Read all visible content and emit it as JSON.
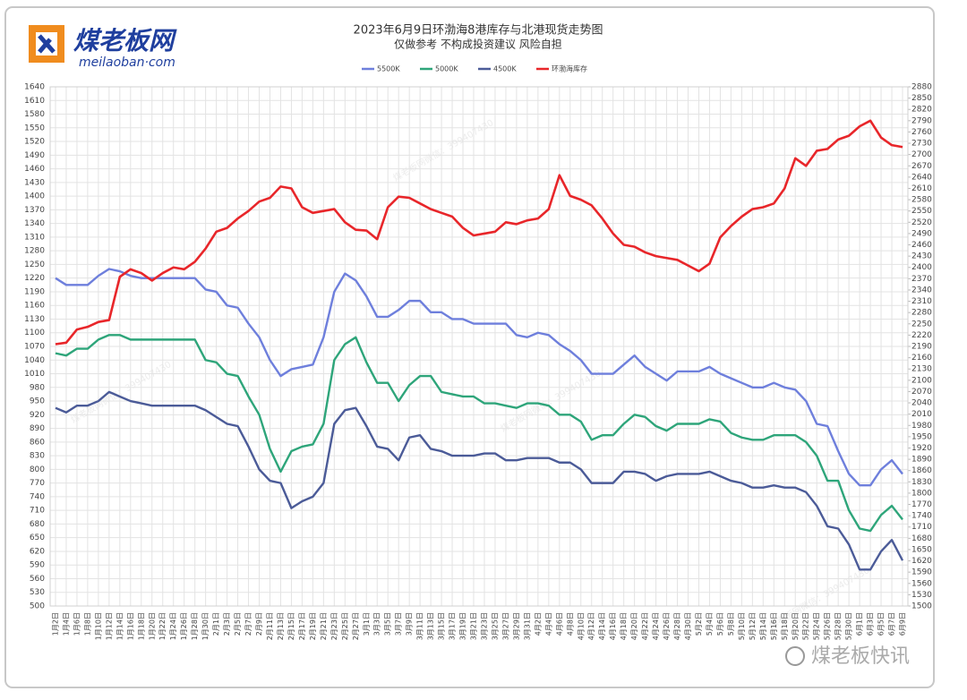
{
  "logo": {
    "name": "煤老板网",
    "site": "meilaoban·com"
  },
  "watermark": "煤老板网微信：399407430",
  "footer_brand": "煤老板快讯",
  "chart_data": {
    "type": "line",
    "title": "2023年6月9日环渤海8港库存与北港现货走势图",
    "subtitle": "仅做参考 不构成投资建议 风险自担",
    "categories": [
      "1月2日",
      "1月4日",
      "1月6日",
      "1月8日",
      "1月10日",
      "1月12日",
      "1月14日",
      "1月16日",
      "1月18日",
      "1月20日",
      "1月22日",
      "1月24日",
      "1月26日",
      "1月28日",
      "1月30日",
      "2月1日",
      "2月3日",
      "2月5日",
      "2月7日",
      "2月9日",
      "2月11日",
      "2月13日",
      "2月15日",
      "2月17日",
      "2月19日",
      "2月21日",
      "2月23日",
      "2月25日",
      "2月27日",
      "3月1日",
      "3月3日",
      "3月5日",
      "3月7日",
      "3月9日",
      "3月11日",
      "3月13日",
      "3月15日",
      "3月17日",
      "3月19日",
      "3月21日",
      "3月23日",
      "3月25日",
      "3月27日",
      "3月29日",
      "3月31日",
      "4月2日",
      "4月4日",
      "4月6日",
      "4月8日",
      "4月10日",
      "4月12日",
      "4月14日",
      "4月16日",
      "4月18日",
      "4月20日",
      "4月22日",
      "4月24日",
      "4月26日",
      "4月28日",
      "4月30日",
      "5月2日",
      "5月4日",
      "5月6日",
      "5月8日",
      "5月10日",
      "5月12日",
      "5月14日",
      "5月16日",
      "5月18日",
      "5月20日",
      "5月22日",
      "5月24日",
      "5月26日",
      "5月28日",
      "5月30日",
      "6月1日",
      "6月3日",
      "6月5日",
      "6月7日",
      "6月9日"
    ],
    "series": [
      {
        "name": "5500K",
        "color": "#6e7fdc",
        "values": [
          1220,
          1205,
          1205,
          1205,
          1225,
          1240,
          1235,
          1225,
          1220,
          1220,
          1220,
          1220,
          1220,
          1220,
          1195,
          1190,
          1160,
          1155,
          1120,
          1090,
          1040,
          1005,
          1020,
          1025,
          1030,
          1090,
          1190,
          1230,
          1215,
          1180,
          1135,
          1135,
          1150,
          1170,
          1170,
          1145,
          1145,
          1130,
          1130,
          1120,
          1120,
          1120,
          1120,
          1095,
          1090,
          1100,
          1095,
          1075,
          1060,
          1040,
          1010,
          1010,
          1010,
          1030,
          1050,
          1025,
          1010,
          995,
          1015,
          1015,
          1015,
          1025,
          1010,
          1000,
          990,
          980,
          980,
          990,
          980,
          975,
          950,
          900,
          895,
          840,
          790,
          765,
          765,
          800,
          820,
          790
        ]
      },
      {
        "name": "5000K",
        "color": "#2ea57a",
        "values": [
          1055,
          1050,
          1065,
          1065,
          1085,
          1095,
          1095,
          1085,
          1085,
          1085,
          1085,
          1085,
          1085,
          1085,
          1040,
          1035,
          1010,
          1005,
          960,
          920,
          845,
          795,
          840,
          850,
          855,
          900,
          1040,
          1075,
          1090,
          1035,
          990,
          990,
          950,
          985,
          1005,
          1005,
          970,
          965,
          960,
          960,
          945,
          945,
          940,
          935,
          945,
          945,
          940,
          920,
          920,
          905,
          865,
          875,
          875,
          900,
          920,
          915,
          895,
          885,
          900,
          900,
          900,
          910,
          905,
          880,
          870,
          865,
          865,
          875,
          875,
          875,
          860,
          830,
          775,
          775,
          710,
          670,
          665,
          700,
          720,
          690
        ]
      },
      {
        "name": "4500K",
        "color": "#4b5b98",
        "values": [
          935,
          925,
          940,
          940,
          950,
          970,
          960,
          950,
          945,
          940,
          940,
          940,
          940,
          940,
          930,
          915,
          900,
          895,
          850,
          800,
          775,
          770,
          715,
          730,
          740,
          770,
          900,
          930,
          935,
          895,
          850,
          845,
          820,
          870,
          875,
          845,
          840,
          830,
          830,
          830,
          835,
          835,
          820,
          820,
          825,
          825,
          825,
          815,
          815,
          800,
          770,
          770,
          770,
          795,
          795,
          790,
          775,
          785,
          790,
          790,
          790,
          795,
          785,
          775,
          770,
          760,
          760,
          765,
          760,
          760,
          750,
          720,
          675,
          670,
          635,
          580,
          580,
          620,
          645,
          600
        ]
      },
      {
        "name": "环渤海库存",
        "color": "#e8262a",
        "axis": "y2",
        "values": [
          2196,
          2200,
          2235,
          2242,
          2255,
          2260,
          2375,
          2395,
          2385,
          2365,
          2385,
          2400,
          2395,
          2415,
          2450,
          2495,
          2505,
          2530,
          2550,
          2575,
          2585,
          2615,
          2610,
          2560,
          2545,
          2550,
          2555,
          2520,
          2500,
          2498,
          2475,
          2560,
          2588,
          2585,
          2570,
          2555,
          2545,
          2535,
          2505,
          2485,
          2490,
          2495,
          2520,
          2515,
          2525,
          2530,
          2555,
          2645,
          2590,
          2580,
          2565,
          2530,
          2490,
          2460,
          2455,
          2440,
          2430,
          2425,
          2420,
          2405,
          2390,
          2410,
          2480,
          2510,
          2535,
          2555,
          2560,
          2570,
          2610,
          2690,
          2670,
          2710,
          2715,
          2740,
          2750,
          2775,
          2790,
          2745,
          2725,
          2720
        ]
      }
    ],
    "ylim": [
      500,
      1640
    ],
    "yticks": [
      500,
      530,
      560,
      590,
      620,
      650,
      680,
      710,
      740,
      770,
      800,
      830,
      860,
      890,
      920,
      950,
      980,
      1010,
      1040,
      1070,
      1100,
      1130,
      1160,
      1190,
      1220,
      1250,
      1280,
      1310,
      1340,
      1370,
      1400,
      1430,
      1460,
      1490,
      1520,
      1550,
      1580,
      1610,
      1640
    ],
    "y2lim": [
      1500,
      2880
    ],
    "y2ticks": [
      1500,
      1530,
      1560,
      1590,
      1620,
      1650,
      1680,
      1710,
      1740,
      1770,
      1800,
      1830,
      1860,
      1890,
      1920,
      1950,
      1980,
      2010,
      2040,
      2070,
      2100,
      2130,
      2160,
      2190,
      2220,
      2250,
      2280,
      2310,
      2340,
      2370,
      2400,
      2430,
      2460,
      2490,
      2520,
      2550,
      2580,
      2610,
      2640,
      2670,
      2700,
      2730,
      2760,
      2790,
      2820,
      2850,
      2880
    ],
    "grid": true,
    "legend": "top"
  }
}
